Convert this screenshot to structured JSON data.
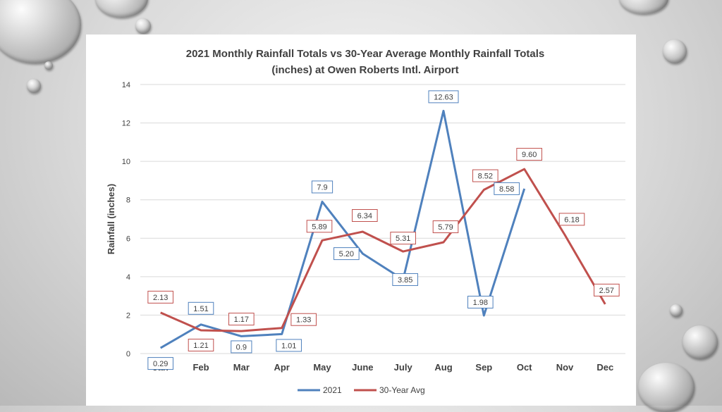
{
  "colors": {
    "series_2021": "#4f81bd",
    "series_avg": "#c0504d",
    "grid": "#d9d9d9"
  },
  "chart_data": {
    "type": "line",
    "title_line1": "2021 Monthly Rainfall Totals vs 30-Year Average Monthly Rainfall Totals",
    "title_line2": "(inches) at Owen Roberts Intl. Airport",
    "xlabel": "",
    "ylabel": "Rainfall  (inches)",
    "ylim": [
      0,
      14
    ],
    "yticks": [
      0,
      2,
      4,
      6,
      8,
      10,
      12,
      14
    ],
    "grid": true,
    "legend_position": "bottom",
    "categories": [
      "Jan",
      "Feb",
      "Mar",
      "Apr",
      "May",
      "June",
      "July",
      "Aug",
      "Sep",
      "Oct",
      "Nov",
      "Dec"
    ],
    "series": [
      {
        "name": "2021",
        "color": "#4f81bd",
        "values": [
          0.29,
          1.51,
          0.9,
          1.01,
          7.9,
          5.2,
          3.85,
          12.63,
          1.98,
          8.58,
          null,
          null
        ],
        "labels": [
          "0.29",
          "1.51",
          "0.9",
          "1.01",
          "7.9",
          "5.20",
          "3.85",
          "12.63",
          "1.98",
          "8.58",
          null,
          null
        ]
      },
      {
        "name": "30-Year Avg",
        "color": "#c0504d",
        "values": [
          2.13,
          1.21,
          1.17,
          1.33,
          5.89,
          6.34,
          5.31,
          5.79,
          8.52,
          9.6,
          6.18,
          2.57
        ],
        "labels": [
          "2.13",
          "1.21",
          "1.17",
          "1.33",
          "5.89",
          "6.34",
          "5.31",
          "5.79",
          "8.52",
          "9.60",
          "6.18",
          "2.57"
        ]
      }
    ]
  }
}
